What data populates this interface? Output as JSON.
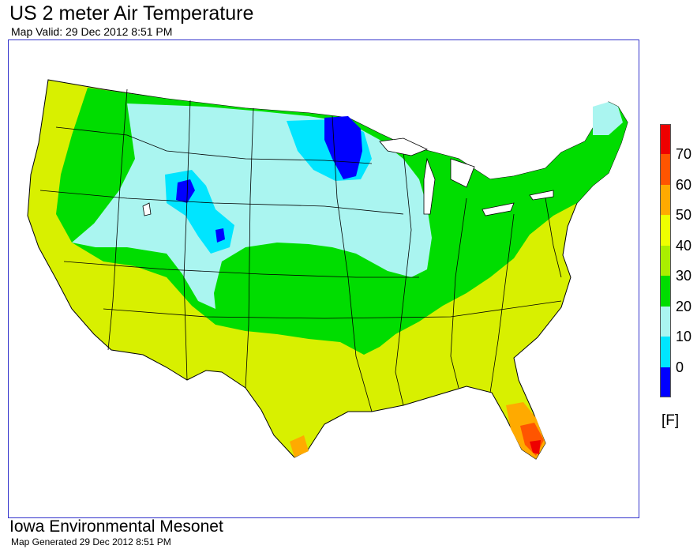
{
  "title": "US 2 meter Air Temperature",
  "subtitle": "Map Valid: 29 Dec 2012 8:51 PM",
  "footer": {
    "org": "Iowa Environmental Mesonet",
    "generated": "Map Generated 29 Dec 2012 8:51 PM"
  },
  "legend": {
    "unit": "[F]",
    "labels": [
      "70",
      "60",
      "50",
      "40",
      "30",
      "20",
      "10",
      "0"
    ],
    "bands": [
      {
        "range": "-10-0",
        "color": "#0000ff"
      },
      {
        "range": "0-10",
        "color": "#00e5ff"
      },
      {
        "range": "10-20",
        "color": "#aaf5f0"
      },
      {
        "range": "20-30",
        "color": "#00dd00"
      },
      {
        "range": "30-40",
        "color": "#aaee00"
      },
      {
        "range": "40-50",
        "color": "#eeff00"
      },
      {
        "range": "50-60",
        "color": "#ffaa00"
      },
      {
        "range": "60-70",
        "color": "#ff5500"
      },
      {
        "range": "70-80",
        "color": "#ee0000"
      }
    ]
  },
  "colors": {
    "frame": "#3333cc",
    "state_borders": "#000000"
  }
}
